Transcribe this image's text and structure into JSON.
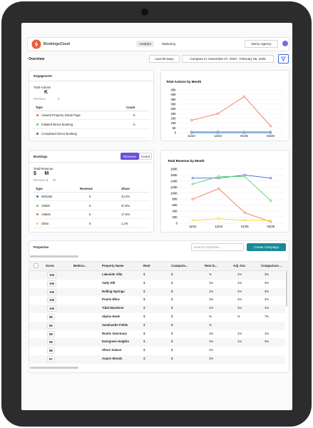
{
  "header": {
    "logo": "BookingsCloud",
    "tabs": [
      "Analytics",
      "Marketing"
    ],
    "account": "Demo Agency"
  },
  "toolbar": {
    "title": "Overview",
    "range": "Last 90 Days",
    "compare": "Compare to: November 07, 2024 - February 05, 2025"
  },
  "engagement": {
    "title": "Engagement",
    "metric_label": "Total Actions",
    "metric_value": "K",
    "previous_label": "Previous",
    "previous_value": "K",
    "columns": [
      "Type",
      "Count"
    ],
    "rows": [
      {
        "color": "#f26b4a",
        "type": "Viewed Property Detail Page",
        "count": "K"
      },
      {
        "color": "#4cd964",
        "type": "Initiated Direct Booking",
        "count": "K"
      },
      {
        "color": "#3d63dd",
        "type": "Completed Direct Booking"
      }
    ]
  },
  "bookings": {
    "title": "Bookings",
    "toggle": [
      "Revenue",
      "Count"
    ],
    "metric_label": "Total Revenue",
    "metric_value": "$      M",
    "previous": "Previous $      M",
    "columns": [
      "Type",
      "Revenue",
      "Share"
    ],
    "rows": [
      {
        "color": "#3d63dd",
        "type": "Website",
        "revenue": "K",
        "share": "43.4%"
      },
      {
        "color": "#4cd964",
        "type": "VRBO",
        "revenue": "K",
        "share": "37.8%"
      },
      {
        "color": "#f26b4a",
        "type": "AirBnb",
        "revenue": "K",
        "share": "17.5%"
      },
      {
        "color": "#f5d90a",
        "type": "Other",
        "revenue": "K",
        "share": "1.2%"
      }
    ]
  },
  "actions_chart": {
    "type": "line",
    "title": "Total Actions by Month",
    "categories": [
      "11/24",
      "12/24",
      "01/25",
      "02/25"
    ],
    "series": [
      {
        "color": "#f47a55",
        "values": [
          13000,
          20000,
          38000,
          7000
        ]
      },
      {
        "color": "#4cd964",
        "values": [
          1000,
          1000,
          1000,
          1000
        ]
      },
      {
        "color": "#3d63dd",
        "values": [
          0,
          0,
          0,
          0
        ]
      }
    ],
    "ylim": [
      0,
      45000
    ],
    "yticks": [
      0,
      {
        "value": 5000,
        "label": "5K"
      },
      {
        "value": 10000,
        "label": "10K"
      },
      {
        "value": 15000,
        "label": "15K"
      },
      {
        "value": 20000,
        "label": "20K"
      },
      {
        "value": 25000,
        "label": "25K"
      },
      {
        "value": 30000,
        "label": "30K"
      },
      {
        "value": 35000,
        "label": "35K"
      },
      {
        "value": 40000,
        "label": "40K"
      },
      {
        "value": 45000,
        "label": "45K"
      }
    ]
  },
  "revenue_chart": {
    "type": "line",
    "title": "Total Revenue by Month",
    "categories": [
      "11/24",
      "12/24",
      "01/25",
      "02/25"
    ],
    "series": [
      {
        "color": "#3d63dd",
        "values": [
          150000,
          150000,
          160000,
          150000
        ]
      },
      {
        "color": "#4cd964",
        "values": [
          130000,
          155000,
          155000,
          75000
        ]
      },
      {
        "color": "#f47a55",
        "values": [
          80000,
          115000,
          35000,
          5000
        ]
      },
      {
        "color": "#f5d90a",
        "values": [
          10000,
          15000,
          10000,
          10000
        ]
      }
    ],
    "ylim": [
      0,
      180000
    ],
    "yticks": [
      0,
      {
        "value": 20000,
        "label": "20K"
      },
      {
        "value": 40000,
        "label": "40K"
      },
      {
        "value": 60000,
        "label": "60K"
      },
      {
        "value": 80000,
        "label": "80K"
      },
      {
        "value": 100000,
        "label": "100K"
      },
      {
        "value": 120000,
        "label": "120K"
      },
      {
        "value": 140000,
        "label": "140K"
      },
      {
        "value": 160000,
        "label": "160K"
      },
      {
        "value": 180000,
        "label": "180K"
      }
    ]
  },
  "properties": {
    "title": "Properties",
    "search_placeholder": "Search properties",
    "button": "Create Campaign",
    "columns": [
      "Score",
      "Bedroo...",
      "Property Name",
      "Rent",
      "Comparis...",
      "Rent D...",
      "Adj. Occ",
      "Comparison ..."
    ],
    "rows": [
      {
        "score": 100,
        "name": "Lakeside Villa",
        "rent": "$",
        "comparison": "$",
        "rent_diff": "%",
        "adj_occ": "1%",
        "comp_occ": "3%"
      },
      {
        "score": 100,
        "name": "Salty Hill",
        "rent": "$",
        "comparison": "$",
        "rent_diff": "1%",
        "adj_occ": "1%",
        "comp_occ": "3%"
      },
      {
        "score": 100,
        "name": "Rolling Springs",
        "rent": "$",
        "comparison": "$",
        "rent_diff": "1%",
        "adj_occ": "1%",
        "comp_occ": "3%"
      },
      {
        "score": 100,
        "name": "Prairie Bliss",
        "rent": "$",
        "comparison": "$",
        "rent_diff": "1%",
        "adj_occ": "1%",
        "comp_occ": "3%"
      },
      {
        "score": 100,
        "name": "Tidal Wanderer",
        "rent": "$",
        "comparison": "$",
        "rent_diff": "1%",
        "adj_occ": "1%",
        "comp_occ": "1%"
      },
      {
        "score": 99,
        "name": "Alpine Nook",
        "rent": "$",
        "comparison": "$",
        "rent_diff": "%",
        "adj_occ": "%",
        "comp_occ": "7%"
      },
      {
        "score": 99,
        "name": "Sandcastle Fields",
        "rent": "$",
        "comparison": "$",
        "rent_diff": "%"
      },
      {
        "score": 98,
        "name": "Rustic Sanctuary",
        "rent": "$",
        "comparison": "$",
        "rent_diff": "1%",
        "adj_occ": "1%",
        "comp_occ": "1%"
      },
      {
        "score": 98,
        "name": "Evergreen Heights",
        "rent": "$",
        "comparison": "$",
        "rent_diff": "1%",
        "adj_occ": "1%",
        "comp_occ": "3%"
      },
      {
        "score": 98,
        "name": "Shore Solace",
        "rent": "$",
        "comparison": "$",
        "rent_diff": "1%"
      },
      {
        "score": 97,
        "name": "Aspen Woods",
        "rent": "$",
        "comparison": "$",
        "rent_diff": "1%"
      }
    ]
  }
}
